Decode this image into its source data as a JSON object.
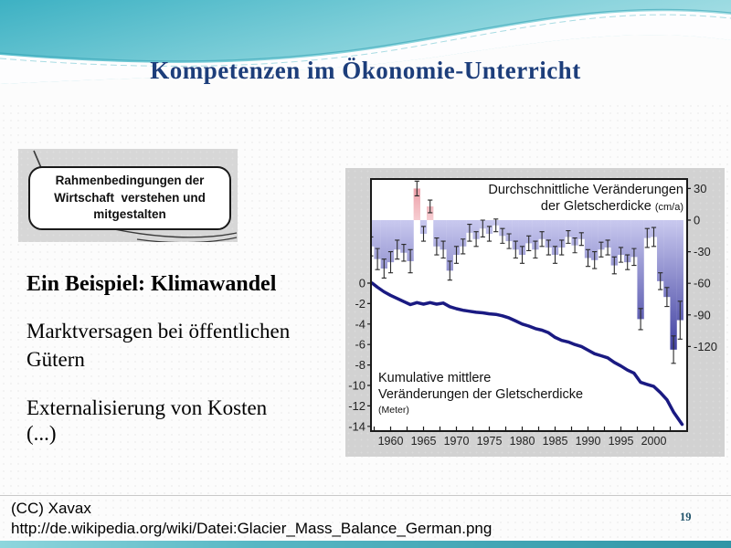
{
  "slide": {
    "title": "Kompetenzen im Ökonomie-Unterricht",
    "page_number": "19",
    "callout": {
      "lines": [
        "Rahmenbedingungen der",
        "Wirtschaft  verstehen und",
        "mitgestalten"
      ]
    },
    "body": {
      "heading": "Ein Beispiel: Klimawandel",
      "para1": "Marktversagen bei öffentlichen Gütern",
      "para2": "Externalisierung von Kosten",
      "ellipsis": "(...)"
    },
    "footer": {
      "credit": "(CC) Xavax",
      "url": "http://de.wikipedia.org/wiki/Datei:Glacier_Mass_Balance_German.png"
    }
  },
  "colors": {
    "title_blue": "#1d3e7b",
    "banner_teal_dark": "#3db1c3",
    "banner_teal_light": "#a9dfe6",
    "bar_light": "#c9c9ef",
    "bar_dark": "#2e2e96",
    "bar_pink_light": "#f7cdd1",
    "bar_pink_dark": "#eb9aa4",
    "line_navy": "#1a1a82",
    "page_num_teal": "#20536b"
  },
  "chart_data": {
    "type": "bar+line",
    "title_annual_line1": "Durchschnittliche Veränderungen",
    "title_annual_line2": "der Gletscherdicke",
    "title_annual_unit": "(cm/a)",
    "title_cumulative_line1": "Kumulative mittlere",
    "title_cumulative_line2": "Veränderungen der Gletscherdicke",
    "title_cumulative_unit": "(Meter)",
    "x_tick_labels": [
      1960,
      1965,
      1970,
      1975,
      1980,
      1985,
      1990,
      1995,
      2000
    ],
    "xlim": [
      1956.5,
      2005
    ],
    "right_axis": {
      "unit": "cm/a",
      "ticks": [
        30,
        0,
        -30,
        -60,
        -90,
        -120
      ]
    },
    "left_axis": {
      "unit": "Meter",
      "ticks": [
        0,
        -2,
        -4,
        -6,
        -8,
        -10,
        -12,
        -14
      ]
    },
    "bars": {
      "start_year": 1957,
      "values": [
        -25,
        -37,
        -46,
        -40,
        -28,
        -31,
        -39,
        30,
        -13,
        13,
        -25,
        -28,
        -48,
        -33,
        -25,
        -12,
        -18,
        -8,
        -13,
        -5,
        -15,
        -20,
        -28,
        -33,
        -22,
        -28,
        -18,
        -26,
        -33,
        -26,
        -16,
        -24,
        -18,
        -36,
        -38,
        -28,
        -26,
        -43,
        -33,
        -40,
        -35,
        -94,
        -17,
        -16,
        -58,
        -73,
        -123,
        -95
      ],
      "errors": [
        9,
        10,
        9,
        10,
        9,
        8,
        11,
        7,
        7,
        6,
        8,
        8,
        9,
        8,
        7,
        8,
        7,
        8,
        7,
        6,
        7,
        7,
        8,
        8,
        7,
        8,
        7,
        7,
        8,
        7,
        6,
        7,
        6,
        8,
        8,
        7,
        7,
        8,
        7,
        7,
        8,
        10,
        9,
        9,
        8,
        9,
        13,
        18
      ]
    },
    "cumulative_line": {
      "points": [
        [
          1957.2,
          0
        ],
        [
          1958,
          -0.4
        ],
        [
          1959,
          -0.85
        ],
        [
          1960,
          -1.2
        ],
        [
          1961,
          -1.5
        ],
        [
          1962,
          -1.8
        ],
        [
          1963,
          -2.1
        ],
        [
          1964,
          -1.9
        ],
        [
          1965,
          -2.05
        ],
        [
          1966,
          -1.9
        ],
        [
          1967,
          -2.05
        ],
        [
          1968,
          -1.95
        ],
        [
          1969,
          -2.3
        ],
        [
          1970,
          -2.5
        ],
        [
          1971,
          -2.65
        ],
        [
          1972,
          -2.75
        ],
        [
          1973,
          -2.85
        ],
        [
          1974,
          -2.9
        ],
        [
          1975,
          -3.0
        ],
        [
          1976,
          -3.05
        ],
        [
          1977,
          -3.2
        ],
        [
          1978,
          -3.4
        ],
        [
          1979,
          -3.7
        ],
        [
          1980,
          -4.0
        ],
        [
          1981,
          -4.2
        ],
        [
          1982,
          -4.45
        ],
        [
          1983,
          -4.6
        ],
        [
          1984,
          -4.85
        ],
        [
          1985,
          -5.3
        ],
        [
          1986,
          -5.6
        ],
        [
          1987,
          -5.75
        ],
        [
          1988,
          -6.0
        ],
        [
          1989,
          -6.2
        ],
        [
          1990,
          -6.55
        ],
        [
          1991,
          -6.9
        ],
        [
          1992,
          -7.1
        ],
        [
          1993,
          -7.3
        ],
        [
          1994,
          -7.75
        ],
        [
          1995,
          -8.1
        ],
        [
          1996,
          -8.5
        ],
        [
          1997,
          -8.8
        ],
        [
          1998,
          -9.7
        ],
        [
          1999,
          -9.9
        ],
        [
          2000,
          -10.1
        ],
        [
          2001,
          -10.7
        ],
        [
          2002,
          -11.4
        ],
        [
          2003,
          -12.6
        ],
        [
          2004.3,
          -13.8
        ]
      ]
    }
  }
}
